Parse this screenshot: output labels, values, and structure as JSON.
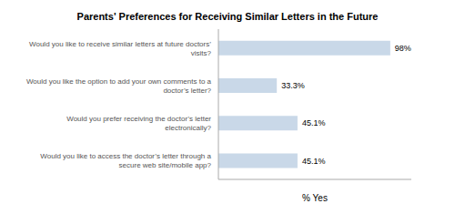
{
  "chart_data": {
    "type": "bar",
    "orientation": "horizontal",
    "title": "Parents' Preferences for Receiving Similar Letters in the Future",
    "categories": [
      "Would you like to access the doctor’s letter through a\nsecure web site/mobile app?",
      "Would you prefer receiving the doctor’s letter\nelectronically?",
      "Would you like the option to add your own comments to a\ndoctor’s letter?",
      "Would you like to receive similar letters at future doctors’\nvisits?"
    ],
    "values": [
      45.1,
      45.1,
      33.3,
      98.0
    ],
    "value_labels": [
      "45.1%",
      "45.1%",
      "33.3%",
      "98%"
    ],
    "data_labels": true,
    "color": "#c9d8e8",
    "xlabel": "% Yes",
    "xlim": [
      0,
      110
    ],
    "tick_labels": "y",
    "grid": false
  }
}
